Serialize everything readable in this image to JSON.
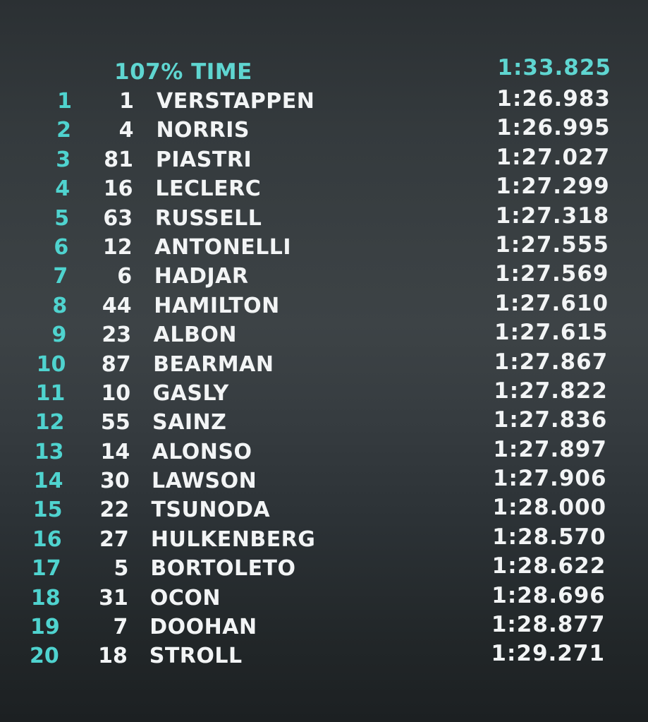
{
  "header": {
    "label": "107% TIME",
    "time": "1:33.825"
  },
  "results": [
    {
      "pos": "1",
      "num": "1",
      "driver": "VERSTAPPEN",
      "time": "1:26.983"
    },
    {
      "pos": "2",
      "num": "4",
      "driver": "NORRIS",
      "time": "1:26.995"
    },
    {
      "pos": "3",
      "num": "81",
      "driver": "PIASTRI",
      "time": "1:27.027"
    },
    {
      "pos": "4",
      "num": "16",
      "driver": "LECLERC",
      "time": "1:27.299"
    },
    {
      "pos": "5",
      "num": "63",
      "driver": "RUSSELL",
      "time": "1:27.318"
    },
    {
      "pos": "6",
      "num": "12",
      "driver": "ANTONELLI",
      "time": "1:27.555"
    },
    {
      "pos": "7",
      "num": "6",
      "driver": "HADJAR",
      "time": "1:27.569"
    },
    {
      "pos": "8",
      "num": "44",
      "driver": "HAMILTON",
      "time": "1:27.610"
    },
    {
      "pos": "9",
      "num": "23",
      "driver": "ALBON",
      "time": "1:27.615"
    },
    {
      "pos": "10",
      "num": "87",
      "driver": "BEARMAN",
      "time": "1:27.867"
    },
    {
      "pos": "11",
      "num": "10",
      "driver": "GASLY",
      "time": "1:27.822"
    },
    {
      "pos": "12",
      "num": "55",
      "driver": "SAINZ",
      "time": "1:27.836"
    },
    {
      "pos": "13",
      "num": "14",
      "driver": "ALONSO",
      "time": "1:27.897"
    },
    {
      "pos": "14",
      "num": "30",
      "driver": "LAWSON",
      "time": "1:27.906"
    },
    {
      "pos": "15",
      "num": "22",
      "driver": "TSUNODA",
      "time": "1:28.000"
    },
    {
      "pos": "16",
      "num": "27",
      "driver": "HULKENBERG",
      "time": "1:28.570"
    },
    {
      "pos": "17",
      "num": "5",
      "driver": "BORTOLETO",
      "time": "1:28.622"
    },
    {
      "pos": "18",
      "num": "31",
      "driver": "OCON",
      "time": "1:28.696"
    },
    {
      "pos": "19",
      "num": "7",
      "driver": "DOOHAN",
      "time": "1:28.877"
    },
    {
      "pos": "20",
      "num": "18",
      "driver": "STROLL",
      "time": "1:29.271"
    }
  ],
  "colors": {
    "accent": "#5fd6d1",
    "text": "#f2f4f5"
  }
}
